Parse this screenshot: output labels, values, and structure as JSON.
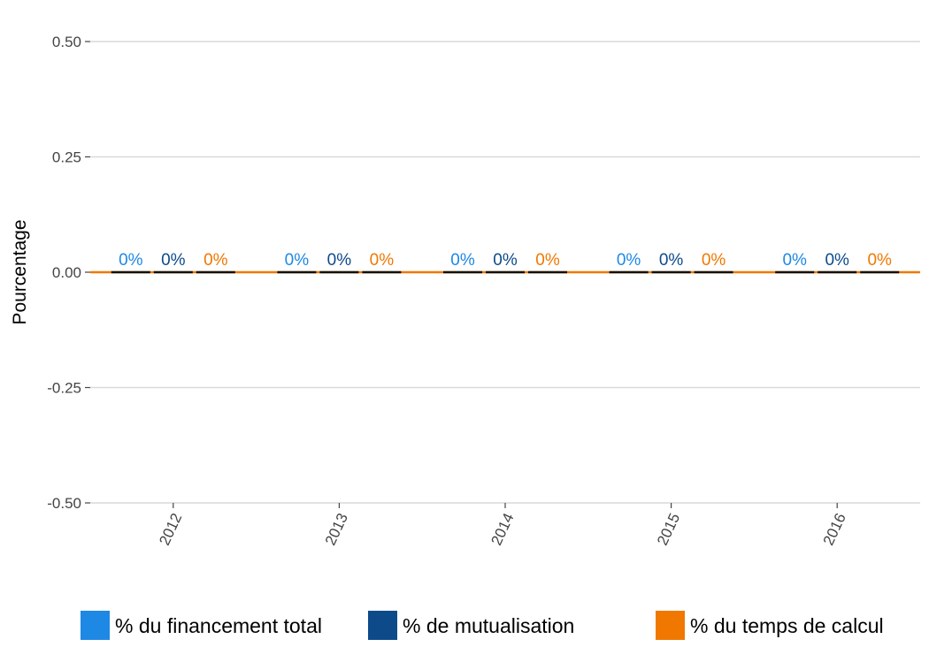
{
  "chart_data": {
    "type": "bar",
    "categories": [
      "2012",
      "2013",
      "2014",
      "2015",
      "2016"
    ],
    "series": [
      {
        "name": "% du financement total",
        "values": [
          0,
          0,
          0,
          0,
          0
        ],
        "labels": [
          "0%",
          "0%",
          "0%",
          "0%",
          "0%"
        ],
        "color": "#1e88e5"
      },
      {
        "name": "% de mutualisation",
        "values": [
          0,
          0,
          0,
          0,
          0
        ],
        "labels": [
          "0%",
          "0%",
          "0%",
          "0%",
          "0%"
        ],
        "color": "#0d4a8a"
      },
      {
        "name": "% du temps de calcul",
        "values": [
          0,
          0,
          0,
          0,
          0
        ],
        "labels": [
          "0%",
          "0%",
          "0%",
          "0%",
          "0%"
        ],
        "color": "#f07800"
      }
    ],
    "ylabel": "Pourcentage",
    "xlabel": "",
    "ylim": [
      -0.5,
      0.5
    ],
    "yticks": [
      0.5,
      0.25,
      0.0,
      -0.25,
      -0.5
    ],
    "ytick_labels": [
      "0.50",
      "0.25",
      "0.00",
      "-0.25",
      "-0.50"
    ],
    "grid": true,
    "legend_position": "bottom"
  }
}
